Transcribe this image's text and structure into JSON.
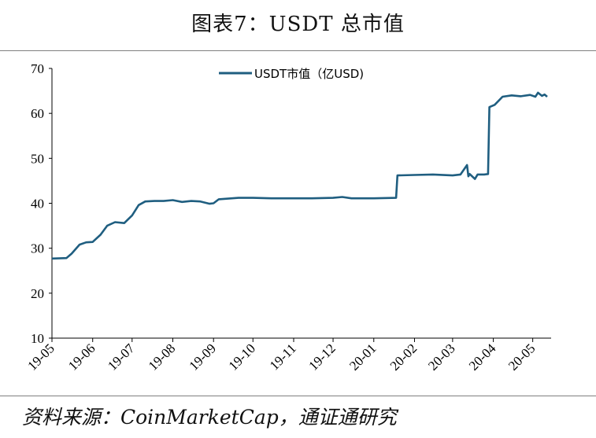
{
  "figure": {
    "title": "图表7：USDT 总市值",
    "source": "资料来源：CoinMarketCap，通证通研究"
  },
  "chart_data": {
    "type": "line",
    "title": "图表7：USDT 总市值",
    "xlabel": "",
    "ylabel": "",
    "ylim": [
      10,
      70
    ],
    "yticks": [
      10,
      20,
      30,
      40,
      50,
      60,
      70
    ],
    "x_tick_labels": [
      "19-05",
      "19-06",
      "19-07",
      "19-08",
      "19-09",
      "19-10",
      "19-11",
      "19-12",
      "20-01",
      "20-02",
      "20-03",
      "20-04",
      "20-05"
    ],
    "grid": false,
    "legend_position": "top-center",
    "series": [
      {
        "name": "USDT市值（亿USD)",
        "color": "#1f5e80",
        "x": [
          "2019-05-01",
          "2019-05-12",
          "2019-05-16",
          "2019-05-22",
          "2019-05-27",
          "2019-06-01",
          "2019-06-07",
          "2019-06-12",
          "2019-06-18",
          "2019-06-25",
          "2019-07-01",
          "2019-07-06",
          "2019-07-11",
          "2019-07-18",
          "2019-07-25",
          "2019-08-01",
          "2019-08-08",
          "2019-08-15",
          "2019-08-22",
          "2019-08-29",
          "2019-09-01",
          "2019-09-05",
          "2019-09-10",
          "2019-09-15",
          "2019-09-20",
          "2019-10-01",
          "2019-10-15",
          "2019-11-01",
          "2019-11-15",
          "2019-12-01",
          "2019-12-08",
          "2019-12-15",
          "2020-01-01",
          "2020-01-18",
          "2020-01-19",
          "2020-02-01",
          "2020-02-15",
          "2020-03-01",
          "2020-03-07",
          "2020-03-12",
          "2020-03-13",
          "2020-03-14",
          "2020-03-18",
          "2020-03-20",
          "2020-03-25",
          "2020-03-28",
          "2020-03-29",
          "2020-04-02",
          "2020-04-08",
          "2020-04-15",
          "2020-04-22",
          "2020-04-29",
          "2020-05-03",
          "2020-05-05",
          "2020-05-08",
          "2020-05-10",
          "2020-05-12"
        ],
        "values": [
          27.7,
          27.8,
          28.8,
          30.8,
          31.3,
          31.4,
          33.0,
          35.0,
          35.8,
          35.6,
          37.3,
          39.6,
          40.4,
          40.5,
          40.5,
          40.7,
          40.3,
          40.5,
          40.4,
          39.9,
          40.0,
          40.9,
          41.0,
          41.1,
          41.2,
          41.2,
          41.1,
          41.1,
          41.1,
          41.2,
          41.4,
          41.1,
          41.1,
          41.2,
          46.2,
          46.3,
          46.4,
          46.2,
          46.4,
          48.5,
          46.0,
          46.5,
          45.4,
          46.4,
          46.4,
          46.5,
          61.4,
          61.9,
          63.7,
          64.0,
          63.8,
          64.1,
          63.7,
          64.6,
          63.9,
          64.2,
          63.7
        ]
      }
    ]
  }
}
